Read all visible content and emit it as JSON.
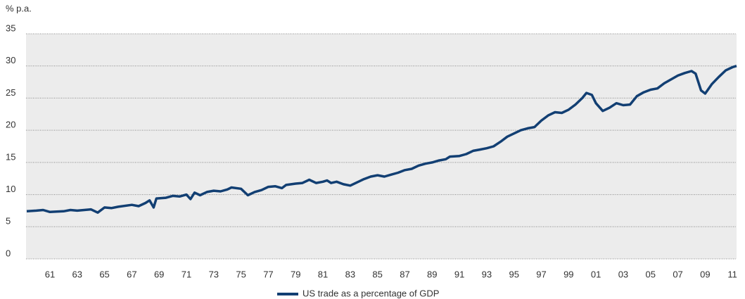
{
  "chart_data": {
    "type": "line",
    "y_label": "% p.a.",
    "ylim": [
      0,
      35
    ],
    "yticks": [
      0,
      5,
      10,
      15,
      20,
      25,
      30,
      35
    ],
    "xlim": [
      1959.25,
      2011.3
    ],
    "xticks": [
      {
        "value": 1961,
        "label": "61"
      },
      {
        "value": 1963,
        "label": "63"
      },
      {
        "value": 1965,
        "label": "65"
      },
      {
        "value": 1967,
        "label": "67"
      },
      {
        "value": 1969,
        "label": "69"
      },
      {
        "value": 1971,
        "label": "71"
      },
      {
        "value": 1973,
        "label": "73"
      },
      {
        "value": 1975,
        "label": "75"
      },
      {
        "value": 1977,
        "label": "77"
      },
      {
        "value": 1979,
        "label": "79"
      },
      {
        "value": 1981,
        "label": "81"
      },
      {
        "value": 1983,
        "label": "83"
      },
      {
        "value": 1985,
        "label": "85"
      },
      {
        "value": 1987,
        "label": "87"
      },
      {
        "value": 1989,
        "label": "89"
      },
      {
        "value": 1991,
        "label": "91"
      },
      {
        "value": 1993,
        "label": "93"
      },
      {
        "value": 1995,
        "label": "95"
      },
      {
        "value": 1997,
        "label": "97"
      },
      {
        "value": 1999,
        "label": "99"
      },
      {
        "value": 2001,
        "label": "01"
      },
      {
        "value": 2003,
        "label": "03"
      },
      {
        "value": 2005,
        "label": "05"
      },
      {
        "value": 2007,
        "label": "07"
      },
      {
        "value": 2009,
        "label": "09"
      },
      {
        "value": 2011,
        "label": "11"
      }
    ],
    "grid": true,
    "legend": "bottom",
    "x": [
      1959.3,
      1960,
      1960.5,
      1961,
      1962,
      1962.5,
      1963,
      1964,
      1964.5,
      1965,
      1965.5,
      1966,
      1967,
      1967.5,
      1968,
      1968.3,
      1968.6,
      1968.8,
      1969.5,
      1970,
      1970.5,
      1971,
      1971.3,
      1971.6,
      1972,
      1972.5,
      1973,
      1973.5,
      1974,
      1974.3,
      1975,
      1975.5,
      1976,
      1976.5,
      1977,
      1977.5,
      1978,
      1978.3,
      1979,
      1979.5,
      1980,
      1980.5,
      1981,
      1981.3,
      1981.6,
      1982,
      1982.5,
      1983,
      1983.5,
      1984,
      1984.5,
      1985,
      1985.5,
      1986,
      1986.5,
      1987,
      1987.5,
      1988,
      1988.5,
      1989,
      1989.5,
      1990,
      1990.3,
      1991,
      1991.5,
      1992,
      1992.5,
      1993,
      1993.5,
      1994,
      1994.5,
      1995,
      1995.5,
      1996,
      1996.5,
      1997,
      1997.5,
      1998,
      1998.5,
      1999,
      1999.5,
      2000,
      2000.3,
      2000.7,
      2001,
      2001.5,
      2002,
      2002.5,
      2003,
      2003.5,
      2004,
      2004.5,
      2005,
      2005.5,
      2006,
      2006.5,
      2007,
      2007.5,
      2008,
      2008.3,
      2008.7,
      2009,
      2009.5,
      2010,
      2010.5,
      2011,
      2011.3
    ],
    "series": [
      {
        "name": "US trade as a percentage of GDP",
        "color": "#123f73",
        "values": [
          7.4,
          7.5,
          7.6,
          7.3,
          7.4,
          7.6,
          7.5,
          7.7,
          7.2,
          8.0,
          7.9,
          8.1,
          8.4,
          8.2,
          8.7,
          9.1,
          8.0,
          9.4,
          9.5,
          9.8,
          9.7,
          10.0,
          9.3,
          10.3,
          9.9,
          10.4,
          10.6,
          10.5,
          10.8,
          11.1,
          10.9,
          9.9,
          10.4,
          10.7,
          11.2,
          11.3,
          11.0,
          11.5,
          11.7,
          11.8,
          12.3,
          11.8,
          12.0,
          12.2,
          11.8,
          12.0,
          11.6,
          11.4,
          11.9,
          12.4,
          12.8,
          13.0,
          12.8,
          13.1,
          13.4,
          13.8,
          14.0,
          14.5,
          14.8,
          15.0,
          15.3,
          15.5,
          15.9,
          16.0,
          16.3,
          16.8,
          17.0,
          17.2,
          17.5,
          18.2,
          19.0,
          19.5,
          20.0,
          20.3,
          20.5,
          21.5,
          22.3,
          22.8,
          22.7,
          23.2,
          24.0,
          25.0,
          25.8,
          25.5,
          24.2,
          23.0,
          23.5,
          24.2,
          23.9,
          24.0,
          25.3,
          25.9,
          26.3,
          26.5,
          27.3,
          27.9,
          28.5,
          28.9,
          29.2,
          28.8,
          26.2,
          25.7,
          27.2,
          28.3,
          29.3,
          29.8,
          30.0
        ]
      }
    ]
  }
}
